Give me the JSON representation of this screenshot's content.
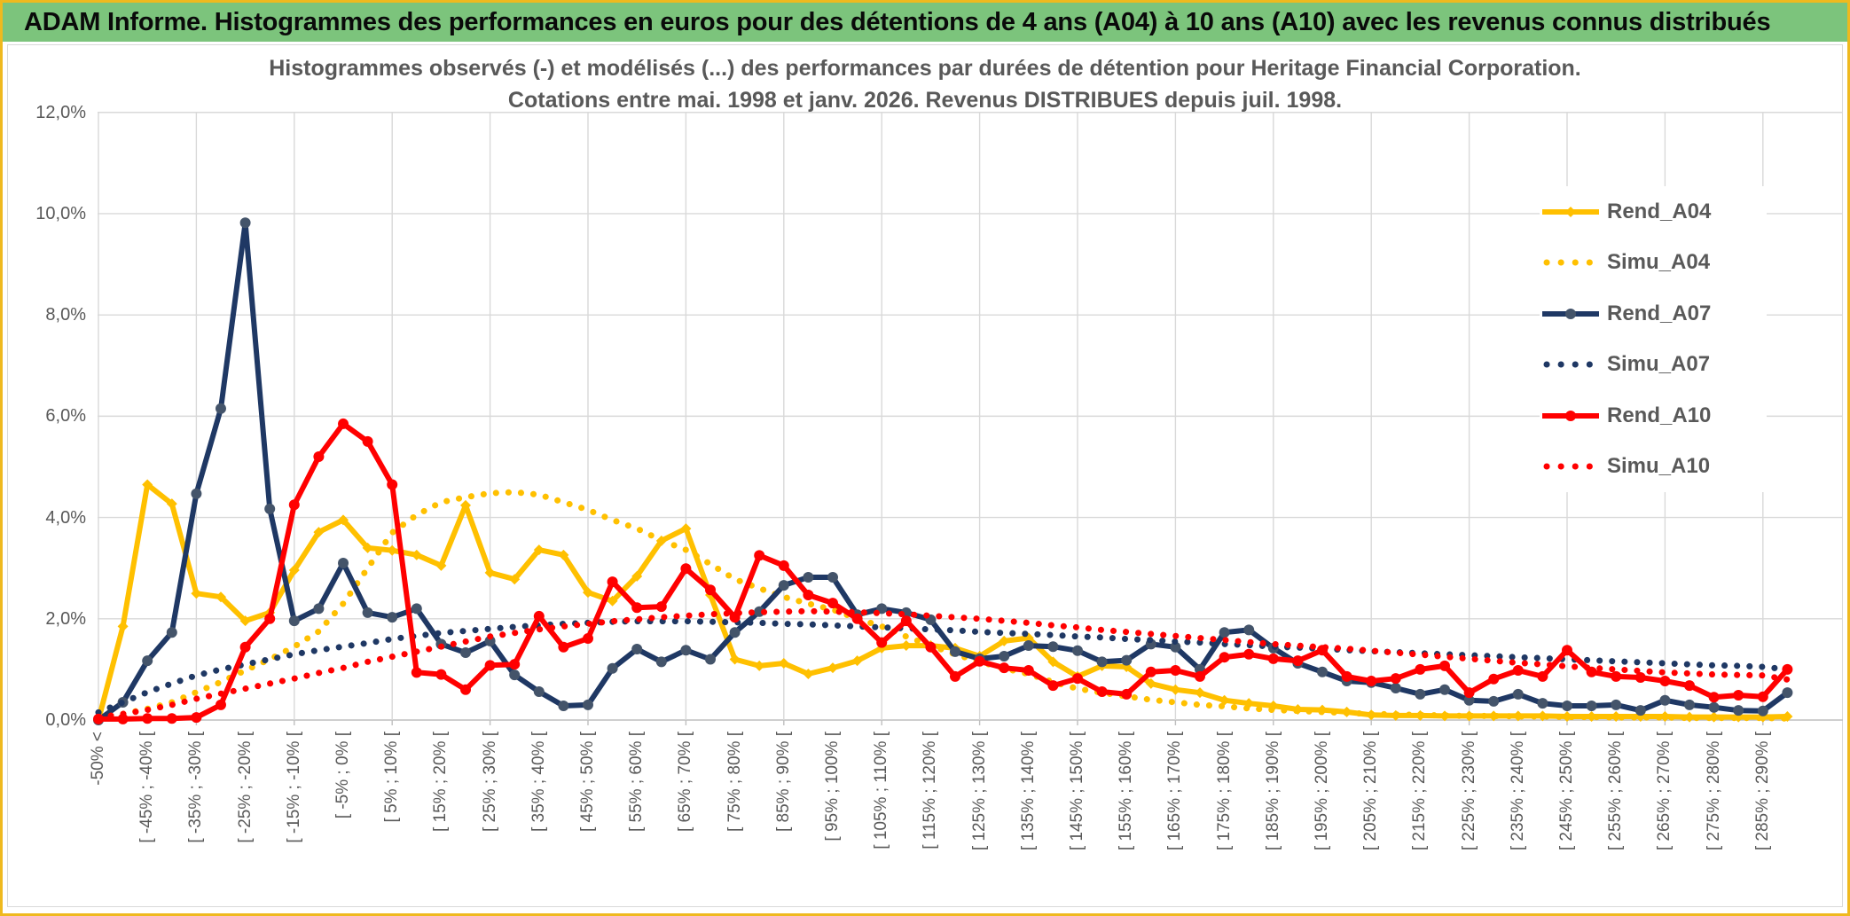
{
  "header": {
    "title": "ADAM Informe. Histogrammes des performances en euros pour des détentions de 4 ans (A04) à 10 ans (A10) avec les revenus connus distribués"
  },
  "chart": {
    "title_line1": "Histogrammes observés (-) et modélisés (...) des performances par durées de détention pour Heritage Financial Corporation.",
    "title_line2": "Cotations entre mai. 1998 et janv. 2026. Revenus DISTRIBUES depuis juil. 1998."
  },
  "chart_data": {
    "type": "line",
    "title": "Histogrammes observés (-) et modélisés (...) des performances par durées de détention pour Heritage Financial Corporation. Cotations entre mai. 1998 et janv. 2026. Revenus DISTRIBUES depuis juil. 1998.",
    "xlabel": "",
    "ylabel": "",
    "ylim": [
      0,
      12
    ],
    "grid": true,
    "legend_position": "right",
    "y_ticks": [
      "12,0%",
      "10,0%",
      "8,0%",
      "6,0%",
      "4,0%",
      "2,0%",
      "0,0%"
    ],
    "y_tick_values": [
      12,
      10,
      8,
      6,
      4,
      2,
      0
    ],
    "categories": [
      "-50% <",
      "[ -45% ; -40% [",
      "[ -35% ; -30% [",
      "[ -25% ; -20% [",
      "[ -15% ; -10% [",
      "[ -5% ; 0% [",
      "[ 5% ; 10% [",
      "[ 15% ; 20% [",
      "[ 25% ; 30% [",
      "[ 35% ; 40% [",
      "[ 45% ; 50% [",
      "[ 55% ; 60% [",
      "[ 65% ; 70% [",
      "[ 75% ; 80% [",
      "[ 85% ; 90% [",
      "[ 95% ; 100% [",
      "[ 105% ; 110% [",
      "[ 115% ; 120% [",
      "[ 125% ; 130% [",
      "[ 135% ; 140% [",
      "[ 145% ; 150% [",
      "[ 155% ; 160% [",
      "[ 165% ; 170% [",
      "[ 175% ; 180% [",
      "[ 185% ; 190% [",
      "[ 195% ; 200% [",
      "[ 205% ; 210% [",
      "[ 215% ; 220% [",
      "[ 225% ; 230% [",
      "[ 235% ; 240% [",
      "[ 245% ; 250% [",
      "[ 255% ; 260% [",
      "[ 265% ; 270% [",
      "[ 275% ; 280% [",
      "[ 285% ; 290% ["
    ],
    "points_per_category": 2,
    "series": [
      {
        "name": "Rend_A04",
        "color": "#FFC000",
        "style": "solid",
        "marker": "diamond",
        "marker_color": "#FFC000",
        "values": [
          0.0,
          1.85,
          4.65,
          4.27,
          2.5,
          2.43,
          1.96,
          2.12,
          2.96,
          3.71,
          3.95,
          3.4,
          3.35,
          3.26,
          3.05,
          4.24,
          2.91,
          2.78,
          3.36,
          3.26,
          2.52,
          2.35,
          2.84,
          3.54,
          3.78,
          2.47,
          1.2,
          1.07,
          1.12,
          0.91,
          1.03,
          1.17,
          1.42,
          1.47,
          1.47,
          1.42,
          1.26,
          1.56,
          1.62,
          1.15,
          0.86,
          1.07,
          1.05,
          0.72,
          0.6,
          0.54,
          0.39,
          0.33,
          0.28,
          0.21,
          0.2,
          0.16,
          0.1,
          0.09,
          0.09,
          0.08,
          0.08,
          0.08,
          0.08,
          0.08,
          0.07,
          0.07,
          0.07,
          0.07,
          0.07,
          0.06,
          0.06,
          0.06,
          0.06,
          0.07
        ]
      },
      {
        "name": "Simu_A04",
        "color": "#FFC000",
        "style": "dotted",
        "marker": "none",
        "marker_color": "#FFC000",
        "values": [
          0.05,
          0.12,
          0.22,
          0.35,
          0.55,
          0.75,
          0.98,
          1.2,
          1.45,
          1.75,
          2.3,
          3.0,
          3.7,
          4.05,
          4.3,
          4.4,
          4.48,
          4.5,
          4.45,
          4.3,
          4.15,
          3.95,
          3.78,
          3.55,
          3.36,
          3.08,
          2.78,
          2.6,
          2.43,
          2.3,
          2.18,
          2.0,
          1.85,
          1.65,
          1.47,
          1.3,
          1.15,
          1.02,
          0.91,
          0.75,
          0.62,
          0.54,
          0.47,
          0.4,
          0.35,
          0.3,
          0.27,
          0.23,
          0.2,
          0.18,
          0.16,
          0.14,
          0.12,
          0.11,
          0.1,
          0.09,
          0.08,
          0.08,
          0.07,
          0.07,
          0.06,
          0.06,
          0.05,
          0.05,
          0.05,
          0.04,
          0.04,
          0.04,
          0.04,
          0.03
        ]
      },
      {
        "name": "Rend_A07",
        "color": "#1F3864",
        "style": "solid",
        "marker": "circle",
        "marker_color": "#44546A",
        "values": [
          0.0,
          0.35,
          1.17,
          1.73,
          4.47,
          6.15,
          9.82,
          4.17,
          1.96,
          2.2,
          3.1,
          2.12,
          2.03,
          2.2,
          1.5,
          1.33,
          1.56,
          0.89,
          0.56,
          0.28,
          0.3,
          1.02,
          1.4,
          1.15,
          1.38,
          1.2,
          1.73,
          2.14,
          2.66,
          2.82,
          2.82,
          2.08,
          2.2,
          2.12,
          1.98,
          1.35,
          1.21,
          1.26,
          1.47,
          1.45,
          1.37,
          1.15,
          1.18,
          1.5,
          1.44,
          1.0,
          1.73,
          1.78,
          1.42,
          1.12,
          0.95,
          0.77,
          0.74,
          0.63,
          0.51,
          0.6,
          0.39,
          0.37,
          0.51,
          0.33,
          0.28,
          0.28,
          0.3,
          0.19,
          0.39,
          0.3,
          0.25,
          0.19,
          0.18,
          0.54
        ]
      },
      {
        "name": "Simu_A07",
        "color": "#1F3864",
        "style": "dotted",
        "marker": "none",
        "marker_color": "#1F3864",
        "values": [
          0.15,
          0.35,
          0.55,
          0.72,
          0.88,
          1.0,
          1.1,
          1.2,
          1.3,
          1.38,
          1.45,
          1.52,
          1.6,
          1.66,
          1.72,
          1.76,
          1.8,
          1.84,
          1.87,
          1.9,
          1.92,
          1.94,
          1.95,
          1.95,
          1.95,
          1.94,
          1.93,
          1.92,
          1.9,
          1.89,
          1.87,
          1.85,
          1.83,
          1.81,
          1.79,
          1.77,
          1.74,
          1.72,
          1.7,
          1.68,
          1.65,
          1.63,
          1.6,
          1.58,
          1.55,
          1.53,
          1.5,
          1.48,
          1.45,
          1.43,
          1.41,
          1.38,
          1.36,
          1.34,
          1.32,
          1.3,
          1.28,
          1.26,
          1.24,
          1.22,
          1.2,
          1.18,
          1.16,
          1.14,
          1.12,
          1.1,
          1.08,
          1.07,
          1.05,
          1.0
        ]
      },
      {
        "name": "Rend_A10",
        "color": "#FF0000",
        "style": "solid",
        "marker": "circle",
        "marker_color": "#FF0000",
        "values": [
          0.02,
          0.02,
          0.03,
          0.03,
          0.05,
          0.3,
          1.44,
          2.0,
          4.25,
          5.2,
          5.85,
          5.5,
          4.65,
          0.94,
          0.9,
          0.6,
          1.08,
          1.1,
          2.05,
          1.44,
          1.61,
          2.73,
          2.22,
          2.24,
          2.99,
          2.57,
          2.03,
          3.25,
          3.05,
          2.47,
          2.31,
          2.0,
          1.53,
          1.96,
          1.44,
          0.86,
          1.16,
          1.03,
          0.98,
          0.68,
          0.82,
          0.56,
          0.51,
          0.95,
          0.98,
          0.86,
          1.24,
          1.3,
          1.21,
          1.17,
          1.38,
          0.86,
          0.77,
          0.82,
          1.0,
          1.07,
          0.54,
          0.81,
          0.98,
          0.86,
          1.38,
          0.95,
          0.86,
          0.84,
          0.77,
          0.68,
          0.45,
          0.49,
          0.46,
          1.0
        ]
      },
      {
        "name": "Simu_A10",
        "color": "#FF0000",
        "style": "dotted",
        "marker": "none",
        "marker_color": "#FF0000",
        "values": [
          0.05,
          0.12,
          0.2,
          0.3,
          0.42,
          0.52,
          0.62,
          0.72,
          0.82,
          0.93,
          1.03,
          1.15,
          1.25,
          1.35,
          1.45,
          1.55,
          1.65,
          1.72,
          1.79,
          1.85,
          1.9,
          1.95,
          1.99,
          2.03,
          2.06,
          2.09,
          2.11,
          2.13,
          2.14,
          2.15,
          2.14,
          2.13,
          2.11,
          2.09,
          2.06,
          2.03,
          2.0,
          1.96,
          1.92,
          1.87,
          1.83,
          1.78,
          1.74,
          1.7,
          1.66,
          1.62,
          1.58,
          1.54,
          1.5,
          1.47,
          1.44,
          1.41,
          1.37,
          1.33,
          1.29,
          1.25,
          1.21,
          1.17,
          1.13,
          1.1,
          1.06,
          1.03,
          1.0,
          0.97,
          0.94,
          0.92,
          0.9,
          0.89,
          0.88,
          0.8
        ]
      }
    ]
  },
  "colors": {
    "header_bg": "#7CC47C",
    "page_border": "#EFB91E",
    "grid": "#D9D9D9",
    "axis": "#BFBFBF",
    "text_gray": "#595959",
    "gold": "#FFC000",
    "navy": "#1F3864",
    "navy_marker": "#44546A",
    "red": "#FF0000"
  }
}
